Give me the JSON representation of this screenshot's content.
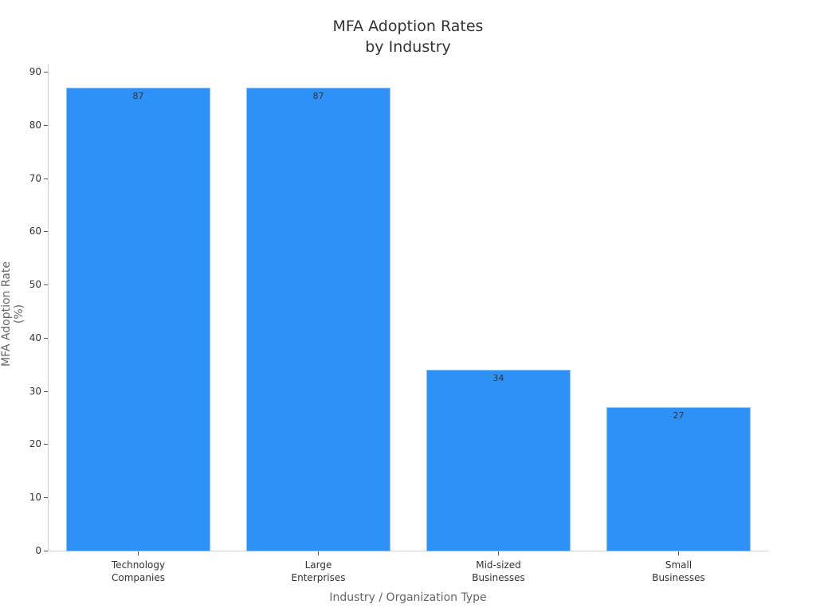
{
  "chart_data": {
    "type": "bar",
    "title": "MFA Adoption Rates\nby Industry",
    "title_lines": [
      "MFA Adoption Rates",
      "by Industry"
    ],
    "xlabel": "Industry / Organization Type",
    "ylabel": "MFA Adoption Rate (%)",
    "categories": [
      "Technology\nCompanies",
      "Large\nEnterprises",
      "Mid-sized\nBusinesses",
      "Small\nBusinesses"
    ],
    "values": [
      87,
      87,
      34,
      27
    ],
    "data_labels": [
      "87",
      "87",
      "34",
      "27"
    ],
    "ylim": [
      0,
      91.5
    ],
    "yticks": [
      0,
      10,
      20,
      30,
      40,
      50,
      60,
      70,
      80,
      90
    ],
    "grid": false,
    "legend": null,
    "bar_color": "#2e91f8"
  }
}
